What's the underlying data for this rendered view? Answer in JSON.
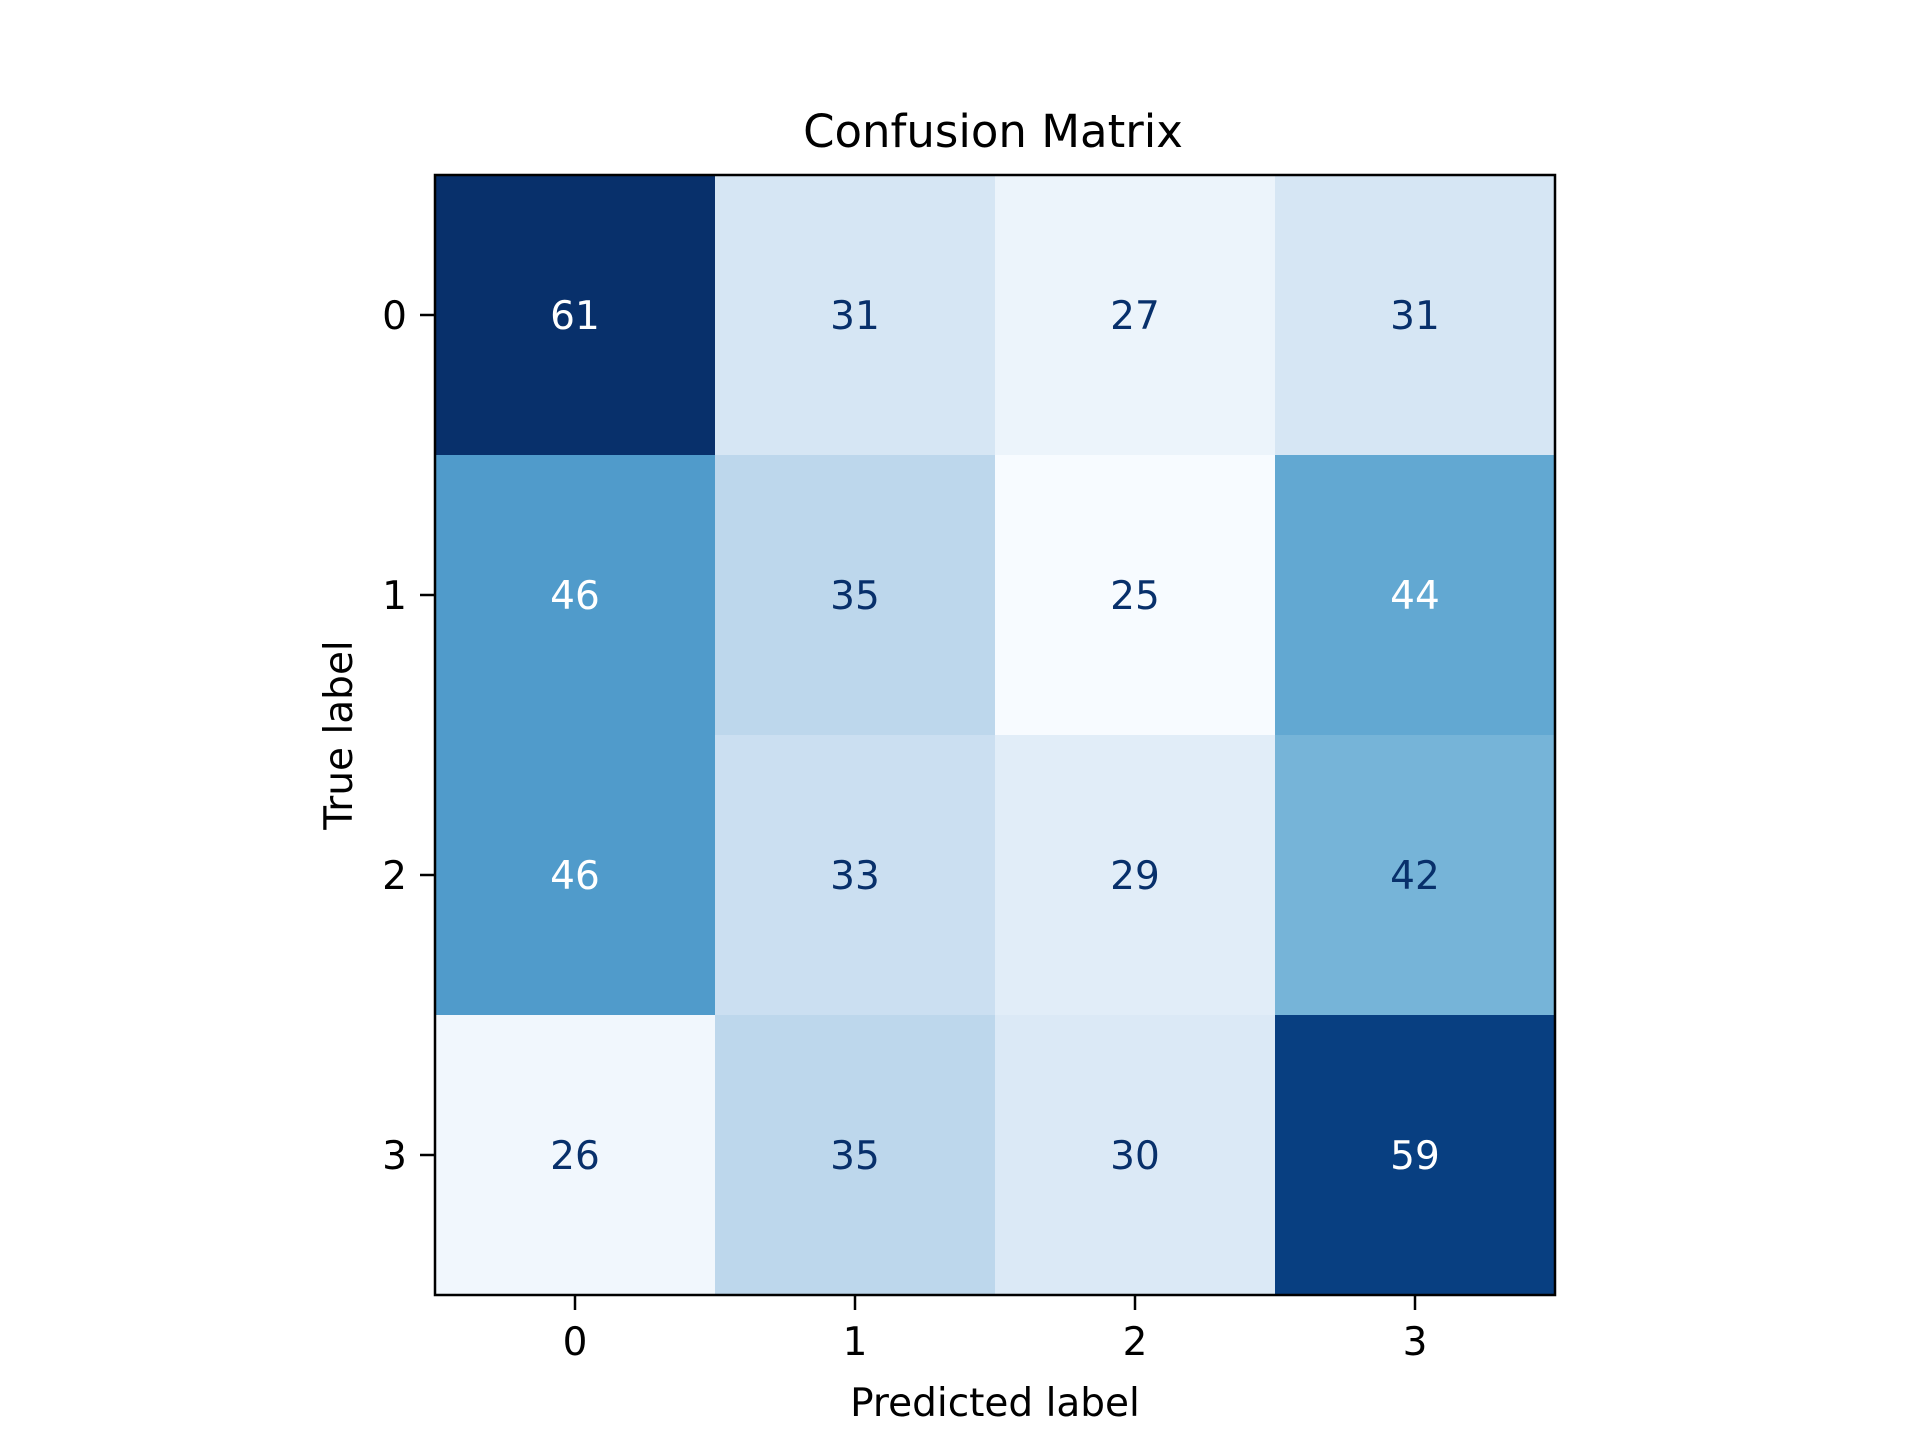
{
  "chart_data": {
    "type": "heatmap",
    "title": "Confusion Matrix",
    "xlabel": "Predicted label",
    "ylabel": "True label",
    "x_categories": [
      "0",
      "1",
      "2",
      "3"
    ],
    "y_categories": [
      "0",
      "1",
      "2",
      "3"
    ],
    "values": [
      [
        61,
        31,
        27,
        31
      ],
      [
        46,
        35,
        25,
        44
      ],
      [
        46,
        33,
        29,
        42
      ],
      [
        26,
        35,
        30,
        59
      ]
    ],
    "colormap": "Blues",
    "value_range": [
      25,
      61
    ],
    "colors": {
      "dark_text": "#08306b",
      "light_text": "#ffffff"
    },
    "grid": false,
    "legend": "none"
  }
}
